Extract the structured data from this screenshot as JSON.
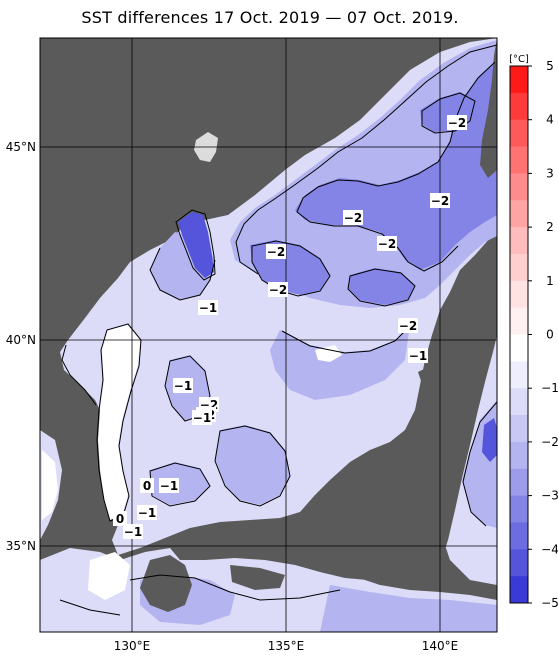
{
  "title": "SST differences 17 Oct. 2019 — 07 Oct. 2019.",
  "colorbar": {
    "unit": "[°C]",
    "ticks": [
      "5",
      "4",
      "3",
      "2",
      "1",
      "0",
      "−1",
      "−2",
      "−3",
      "−4",
      "−5"
    ],
    "levels": [
      5,
      4,
      3,
      2,
      1,
      0,
      -1,
      -2,
      -3,
      -4,
      -5
    ],
    "colors": [
      "#ff1a1a",
      "#ff5a5a",
      "#ff8c8c",
      "#ffbcbc",
      "#ffe2e2",
      "#ffffff",
      "#dcdcf8",
      "#b4b4f0",
      "#8484e6",
      "#5555dc",
      "#1f1fd2"
    ]
  },
  "axes": {
    "lon_labels": [
      "130°E",
      "135°E",
      "140°E"
    ],
    "lat_labels": [
      "45°N",
      "40°N",
      "35°N"
    ]
  },
  "contour_labels": [
    "−2",
    "−2",
    "−2",
    "−2",
    "−2",
    "−2",
    "−2",
    "−1",
    "−2",
    "−1",
    "−1",
    "−2",
    "−1",
    "0",
    "−1",
    "−1",
    "0",
    "−1"
  ],
  "colors": {
    "land": "#5a5a5a",
    "sea_light": "#dcdcf8",
    "sea_mid": "#b4b4f0",
    "sea_dark": "#8484e6",
    "sea_deep": "#5555dc",
    "ice_island": "#dcdcdc"
  }
}
